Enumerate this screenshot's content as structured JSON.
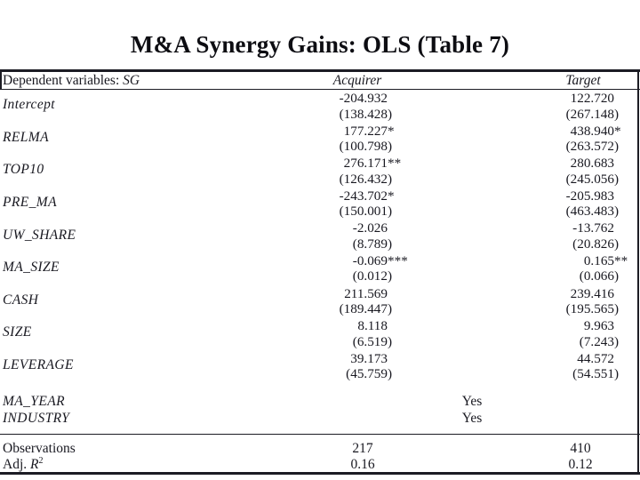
{
  "colors": {
    "background": "#ffffff",
    "text": "#181820",
    "rule": "#1c1c24"
  },
  "slide": {
    "title": "M&A Synergy Gains: OLS (Table 7)"
  },
  "table": {
    "header": {
      "dependent_prefix": "Dependent variables: ",
      "dependent_variable": "SG",
      "col_acquirer": "Acquirer",
      "col_target": "Target"
    },
    "coef_rows": [
      {
        "label": "Intercept",
        "acquirer": {
          "coef": "-204.932",
          "se": "(138.428)"
        },
        "target": {
          "coef": "122.720",
          "se": "(267.148)"
        }
      },
      {
        "label": "RELMA",
        "acquirer": {
          "coef": "177.227*",
          "se": "(100.798)"
        },
        "target": {
          "coef": "438.940*",
          "se": "(263.572)"
        }
      },
      {
        "label": "TOP10",
        "acquirer": {
          "coef": "276.171**",
          "se": "(126.432)"
        },
        "target": {
          "coef": "280.683",
          "se": "(245.056)"
        }
      },
      {
        "label": "PRE_MA",
        "acquirer": {
          "coef": "-243.702*",
          "se": "(150.001)"
        },
        "target": {
          "coef": "-205.983",
          "se": "(463.483)"
        }
      },
      {
        "label": "UW_SHARE",
        "acquirer": {
          "coef": "-2.026",
          "se": "(8.789)"
        },
        "target": {
          "coef": "-13.762",
          "se": "(20.826)"
        }
      },
      {
        "label": "MA_SIZE",
        "acquirer": {
          "coef": "-0.069***",
          "se": "(0.012)"
        },
        "target": {
          "coef": "0.165**",
          "se": "(0.066)"
        }
      },
      {
        "label": "CASH",
        "acquirer": {
          "coef": "211.569",
          "se": "(189.447)"
        },
        "target": {
          "coef": "239.416",
          "se": "(195.565)"
        }
      },
      {
        "label": "SIZE",
        "acquirer": {
          "coef": "8.118",
          "se": "(6.519)"
        },
        "target": {
          "coef": "9.963",
          "se": "(7.243)"
        }
      },
      {
        "label": "LEVERAGE",
        "acquirer": {
          "coef": "39.173",
          "se": "(45.759)"
        },
        "target": {
          "coef": "44.572",
          "se": "(54.551)"
        }
      }
    ],
    "control_rows": [
      {
        "label": "MA_YEAR",
        "value": "Yes"
      },
      {
        "label": "INDUSTRY",
        "value": "Yes"
      }
    ],
    "stat_rows": [
      {
        "label_prefix": "Observations",
        "label_var": "",
        "label_sup": "",
        "acquirer": "217",
        "target": "410"
      },
      {
        "label_prefix": "Adj. ",
        "label_var": "R",
        "label_sup": "2",
        "acquirer": "0.16",
        "target": "0.12"
      }
    ]
  }
}
